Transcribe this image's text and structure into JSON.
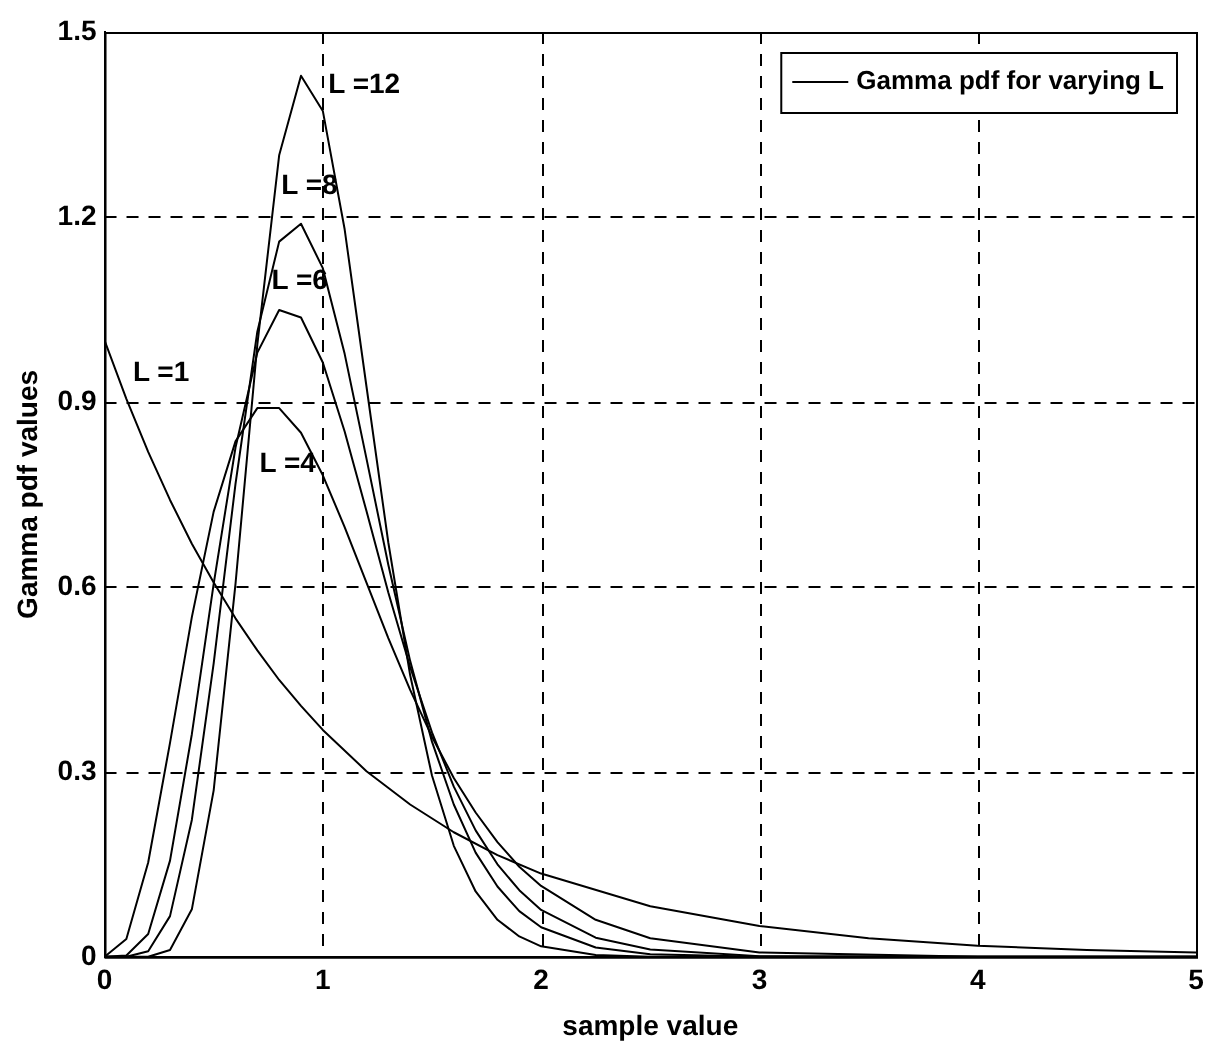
{
  "chart_data": {
    "type": "line",
    "xlabel": "sample value",
    "ylabel": "Gamma pdf values",
    "xlim": [
      0,
      5
    ],
    "xticks": [
      0,
      1,
      2,
      3,
      4,
      5
    ],
    "ylim": [
      0,
      1.5
    ],
    "yticks": [
      0,
      0.3,
      0.6,
      0.9,
      1.2,
      1.5
    ],
    "grid": true,
    "legend": "top right",
    "marker": "none",
    "line_style": "solid",
    "series": [
      {
        "name": "Gamma pdf for varying L",
        "color": "#000000",
        "x": [
          0,
          0.1,
          0.2,
          0.3,
          0.4,
          0.5,
          0.6,
          0.7,
          0.8,
          0.9,
          1,
          1.2,
          1.4,
          1.6,
          1.8,
          2,
          2.5,
          3,
          3.5,
          4,
          4.5,
          5
        ],
        "values": [
          1,
          0.905,
          0.819,
          0.741,
          0.67,
          0.607,
          0.549,
          0.497,
          0.449,
          0.407,
          0.368,
          0.301,
          0.247,
          0.202,
          0.165,
          0.135,
          0.082,
          0.05,
          0.03,
          0.018,
          0.011,
          0.007
        ]
      },
      {
        "color": "#000000",
        "x": [
          0,
          0.1,
          0.2,
          0.3,
          0.4,
          0.5,
          0.6,
          0.7,
          0.8,
          0.9,
          1,
          1.1,
          1.2,
          1.3,
          1.4,
          1.5,
          1.6,
          1.7,
          1.8,
          1.9,
          2,
          2.25,
          2.5,
          3,
          4,
          5
        ],
        "values": [
          0,
          0.029,
          0.153,
          0.347,
          0.551,
          0.722,
          0.836,
          0.89,
          0.89,
          0.85,
          0.781,
          0.697,
          0.607,
          0.517,
          0.433,
          0.357,
          0.29,
          0.234,
          0.186,
          0.146,
          0.115,
          0.06,
          0.03,
          0.007,
          0,
          0
        ]
      },
      {
        "color": "#000000",
        "x": [
          0,
          0.1,
          0.2,
          0.3,
          0.4,
          0.5,
          0.6,
          0.7,
          0.8,
          0.9,
          1,
          1.1,
          1.2,
          1.3,
          1.4,
          1.5,
          1.6,
          1.7,
          1.8,
          1.9,
          2,
          2.25,
          2.5,
          3,
          4,
          5
        ],
        "values": [
          0,
          0.002,
          0.037,
          0.156,
          0.361,
          0.605,
          0.826,
          0.98,
          1.049,
          1.037,
          0.964,
          0.852,
          0.723,
          0.591,
          0.47,
          0.364,
          0.276,
          0.205,
          0.15,
          0.108,
          0.076,
          0.031,
          0.012,
          0.001,
          0,
          0
        ]
      },
      {
        "color": "#000000",
        "x": [
          0,
          0.1,
          0.2,
          0.3,
          0.4,
          0.5,
          0.6,
          0.7,
          0.8,
          0.9,
          1,
          1.1,
          1.2,
          1.3,
          1.4,
          1.5,
          1.6,
          1.7,
          1.8,
          1.9,
          2,
          2.25,
          2.5,
          3,
          4,
          5
        ],
        "values": [
          0,
          0,
          0.009,
          0.066,
          0.222,
          0.476,
          0.767,
          1.014,
          1.16,
          1.189,
          1.117,
          0.978,
          0.808,
          0.636,
          0.48,
          0.349,
          0.247,
          0.169,
          0.114,
          0.074,
          0.048,
          0.015,
          0.004,
          0,
          0,
          0
        ]
      },
      {
        "color": "#000000",
        "x": [
          0,
          0.1,
          0.2,
          0.3,
          0.4,
          0.5,
          0.6,
          0.7,
          0.8,
          0.9,
          1,
          1.1,
          1.2,
          1.3,
          1.4,
          1.5,
          1.6,
          1.7,
          1.8,
          1.9,
          2,
          2.25,
          2.5,
          3,
          4,
          5
        ],
        "values": [
          0,
          0,
          0,
          0.011,
          0.077,
          0.27,
          0.605,
          0.993,
          1.3,
          1.429,
          1.372,
          1.18,
          0.925,
          0.672,
          0.457,
          0.294,
          0.18,
          0.106,
          0.06,
          0.033,
          0.017,
          0.003,
          0,
          0,
          0,
          0
        ]
      }
    ],
    "annotations": [
      "L =12",
      "L =8",
      "L =6",
      "L =1",
      "L =4"
    ]
  }
}
